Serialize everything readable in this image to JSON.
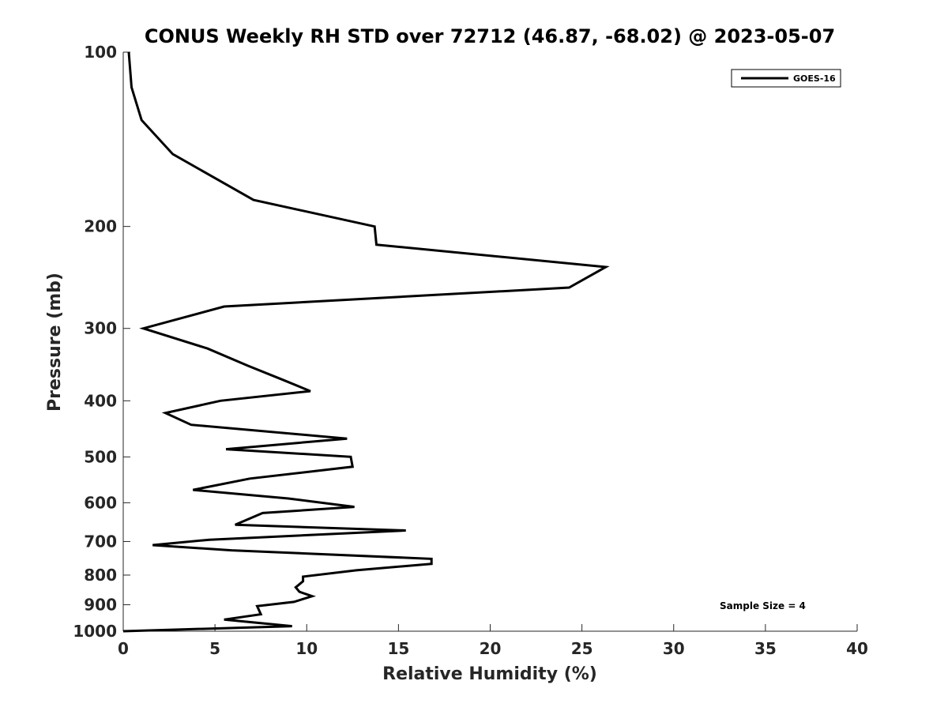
{
  "chart_data": {
    "type": "line",
    "title": "CONUS Weekly RH STD over 72712 (46.87, -68.02) @ 2023-05-07",
    "xlabel": "Relative Humidity (%)",
    "ylabel": "Pressure (mb)",
    "xlim": [
      0,
      40
    ],
    "ylim": [
      100,
      1000
    ],
    "y_scale": "log",
    "y_reversed": true,
    "x_ticks": [
      0,
      5,
      10,
      15,
      20,
      25,
      30,
      35,
      40
    ],
    "y_ticks": [
      100,
      200,
      300,
      400,
      500,
      600,
      700,
      800,
      900,
      1000
    ],
    "grid": false,
    "legend_position": "top-right",
    "annotation": "Sample Size = 4",
    "series": [
      {
        "name": "GOES-16",
        "color": "#000000",
        "x": [
          0.3,
          0.45,
          1.0,
          2.7,
          7.1,
          13.7,
          13.8,
          26.3,
          24.3,
          5.5,
          1.1,
          4.6,
          6.8,
          8.7,
          10.2,
          5.3,
          2.3,
          3.7,
          12.2,
          5.6,
          12.4,
          12.5,
          6.9,
          3.8,
          9.0,
          12.6,
          7.6,
          6.1,
          15.4,
          4.7,
          1.6,
          5.9,
          16.8,
          16.8,
          12.7,
          9.8,
          9.8,
          9.4,
          9.6,
          10.3,
          9.3,
          7.3,
          7.5,
          5.5,
          9.2,
          0.0
        ],
        "y": [
          100,
          115,
          131,
          150,
          180,
          200,
          215,
          235,
          255,
          275,
          300,
          325,
          348,
          368,
          385,
          400,
          420,
          440,
          465,
          485,
          500,
          520,
          545,
          570,
          590,
          610,
          625,
          655,
          670,
          695,
          710,
          725,
          750,
          765,
          785,
          805,
          820,
          840,
          855,
          870,
          890,
          905,
          935,
          955,
          980,
          1000
        ]
      }
    ]
  }
}
